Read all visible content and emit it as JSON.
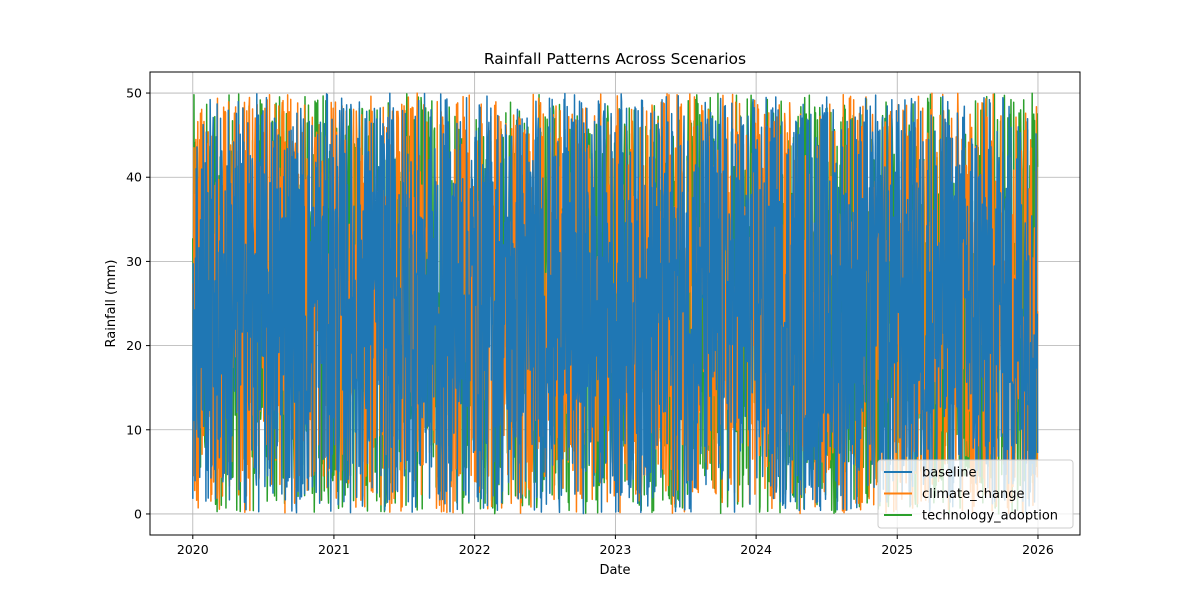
{
  "chart_data": {
    "type": "line",
    "title": "Rainfall Patterns Across Scenarios",
    "xlabel": "Date",
    "ylabel": "Rainfall (mm)",
    "x_range": [
      "2020-01-01",
      "2025-12-31"
    ],
    "xlim": [
      "2019-09-12",
      "2026-04-20"
    ],
    "ylim": [
      -2.5,
      52.5
    ],
    "x_ticks": [
      "2020",
      "2021",
      "2022",
      "2023",
      "2024",
      "2025",
      "2026"
    ],
    "y_ticks": [
      0,
      10,
      20,
      30,
      40,
      50
    ],
    "grid": true,
    "legend_position": "lower-right",
    "value_range": [
      0,
      50
    ],
    "series": [
      {
        "name": "baseline",
        "color": "#1f77b4"
      },
      {
        "name": "climate_change",
        "color": "#ff7f0e"
      },
      {
        "name": "technology_adoption",
        "color": "#2ca02c"
      }
    ]
  }
}
